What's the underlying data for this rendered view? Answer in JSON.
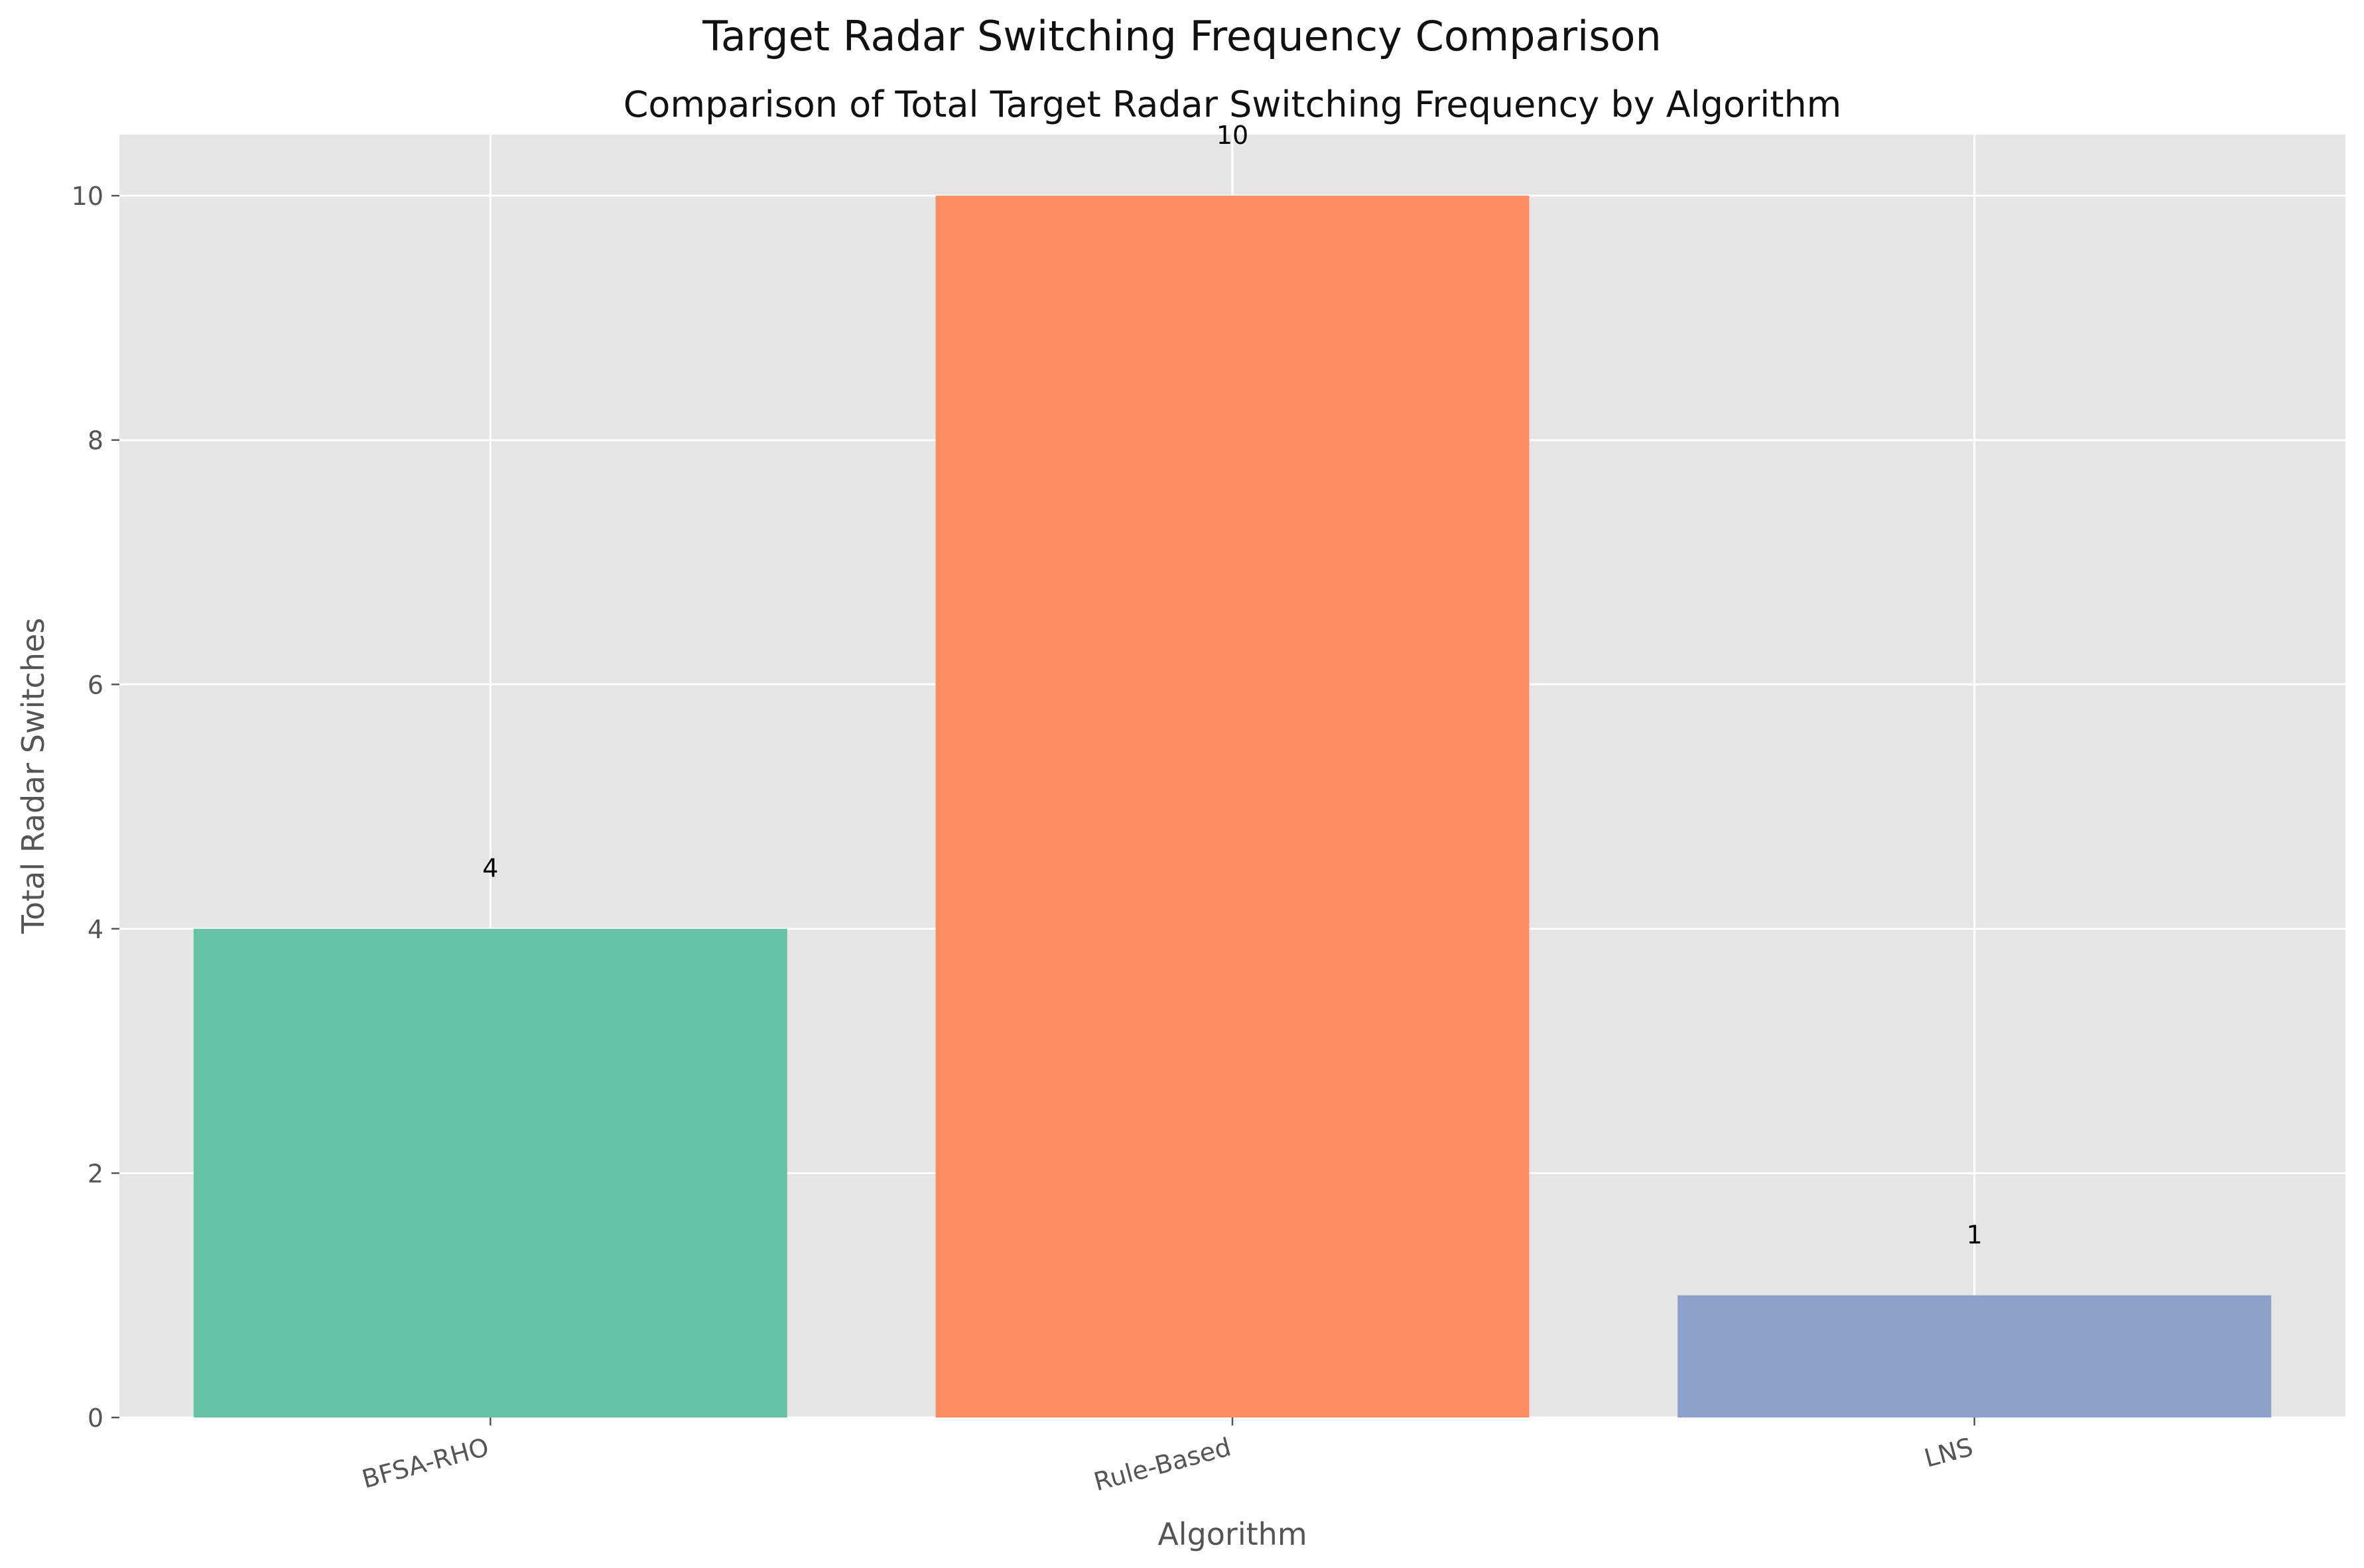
{
  "chart_data": {
    "type": "bar",
    "suptitle": "Target Radar Switching Frequency Comparison",
    "title": "Comparison of Total Target Radar Switching Frequency by Algorithm",
    "xlabel": "Algorithm",
    "ylabel": "Total Radar Switches",
    "categories": [
      "BFSA-RHO",
      "Rule-Based",
      "LNS"
    ],
    "values": [
      4,
      10,
      1
    ],
    "data_labels": [
      "4",
      "10",
      "1"
    ],
    "bar_colors": [
      "#66c2a5",
      "#fc8d62",
      "#8da0cb"
    ],
    "ylim": [
      0,
      10.5
    ],
    "yticks": [
      0,
      2,
      4,
      6,
      8,
      10
    ],
    "ytick_labels": [
      "0",
      "2",
      "4",
      "6",
      "8",
      "10"
    ],
    "grid": true,
    "style": {
      "plot_background": "#e5e5e5",
      "grid_color": "#ffffff",
      "tick_label_color": "#555555",
      "label_color": "#555555",
      "title_color": "#111111"
    }
  }
}
